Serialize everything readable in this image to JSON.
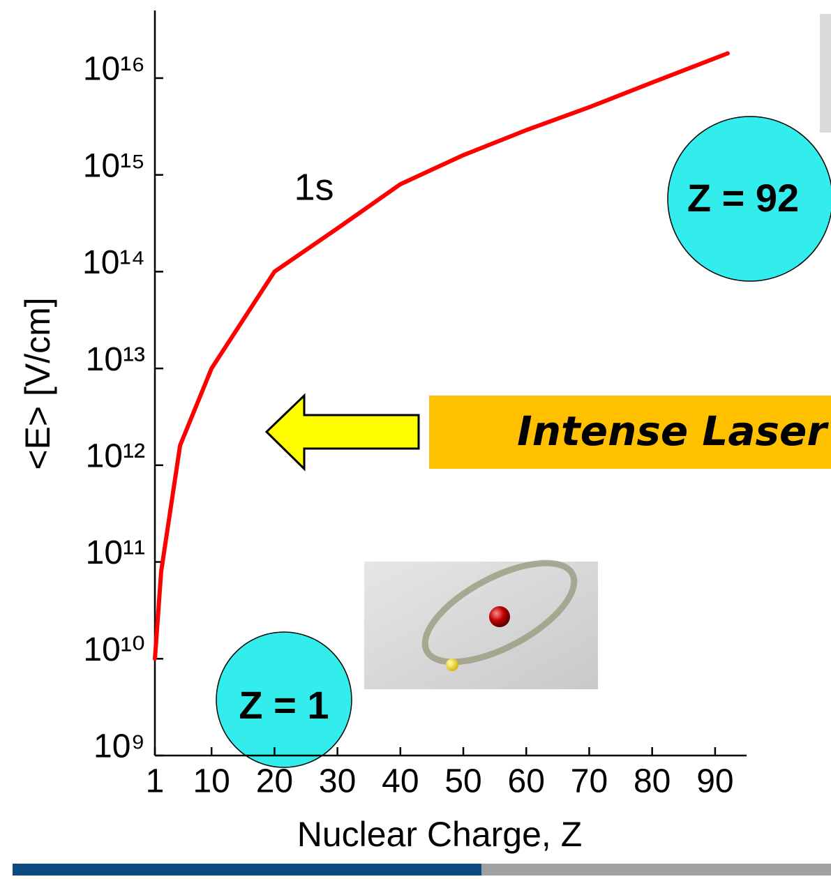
{
  "chart_data": {
    "type": "line",
    "x_label": "Nuclear Charge, Z",
    "y_label": "<E>  [V/cm]",
    "yscale": "log",
    "x": [
      1,
      2,
      5,
      10,
      20,
      30,
      40,
      50,
      60,
      70,
      80,
      92
    ],
    "values": [
      10000000000,
      80000000000,
      1600000000000,
      10000000000000,
      100000000000000,
      280000000000000,
      800000000000000,
      1600000000000000,
      2900000000000000,
      5000000000000000,
      9000000000000000,
      18000000000000000
    ],
    "color": "#ff0000",
    "xlim": [
      1,
      95
    ],
    "xticks": [
      1,
      10,
      20,
      30,
      40,
      50,
      60,
      70,
      80,
      90
    ],
    "ylim": [
      1000000000,
      50000000000000000
    ],
    "yticks": [
      {
        "value": 1000000000,
        "label": "10⁹"
      },
      {
        "value": 10000000000,
        "label": "10¹⁰"
      },
      {
        "value": 100000000000,
        "label": "10¹¹"
      },
      {
        "value": 1000000000000,
        "label": "10¹²"
      },
      {
        "value": 10000000000000,
        "label": "10¹³"
      },
      {
        "value": 100000000000000,
        "label": "10¹⁴"
      },
      {
        "value": 1000000000000000,
        "label": "10¹⁵"
      },
      {
        "value": 10000000000000000,
        "label": "10¹⁶"
      }
    ],
    "annotations": [
      "1s",
      "Z = 92",
      "Z = 1",
      "Intense Laser"
    ]
  }
}
